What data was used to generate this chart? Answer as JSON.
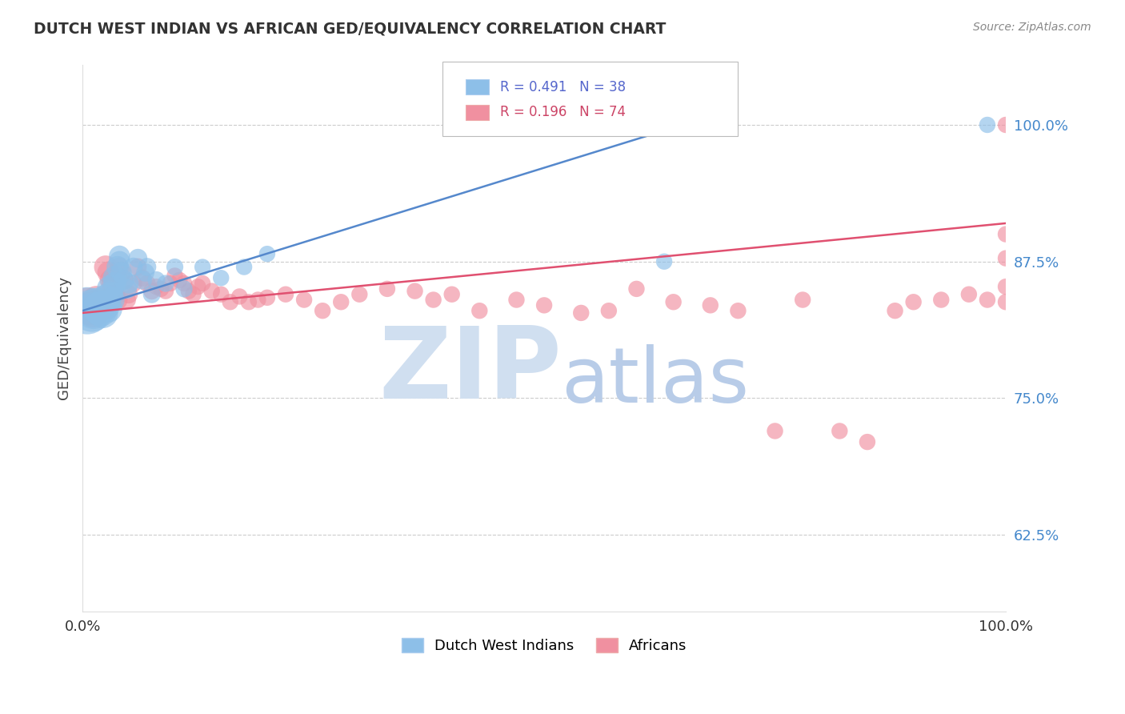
{
  "title": "DUTCH WEST INDIAN VS AFRICAN GED/EQUIVALENCY CORRELATION CHART",
  "source": "Source: ZipAtlas.com",
  "ylabel": "GED/Equivalency",
  "ytick_labels": [
    "62.5%",
    "75.0%",
    "87.5%",
    "100.0%"
  ],
  "ytick_values": [
    0.625,
    0.75,
    0.875,
    1.0
  ],
  "xlim": [
    0.0,
    1.0
  ],
  "ylim": [
    0.555,
    1.055
  ],
  "legend_blue_label": "Dutch West Indians",
  "legend_pink_label": "Africans",
  "R_blue": 0.491,
  "N_blue": 38,
  "R_pink": 0.196,
  "N_pink": 74,
  "blue_color": "#8dbfe8",
  "pink_color": "#f090a0",
  "blue_line_color": "#5588cc",
  "pink_line_color": "#e05070",
  "watermark_zip": "ZIP",
  "watermark_atlas": "atlas",
  "watermark_color_zip": "#d0dff0",
  "watermark_color_atlas": "#b8cce8",
  "background_color": "#ffffff",
  "grid_color": "#cccccc",
  "blue_points_x": [
    0.005,
    0.01,
    0.012,
    0.015,
    0.018,
    0.02,
    0.022,
    0.025,
    0.025,
    0.028,
    0.03,
    0.03,
    0.032,
    0.035,
    0.035,
    0.038,
    0.04,
    0.04,
    0.042,
    0.045,
    0.048,
    0.05,
    0.055,
    0.06,
    0.065,
    0.068,
    0.07,
    0.075,
    0.08,
    0.09,
    0.1,
    0.11,
    0.13,
    0.15,
    0.175,
    0.2,
    0.63,
    0.98
  ],
  "blue_points_y": [
    0.83,
    0.83,
    0.83,
    0.835,
    0.832,
    0.83,
    0.828,
    0.84,
    0.835,
    0.832,
    0.85,
    0.845,
    0.84,
    0.86,
    0.855,
    0.87,
    0.88,
    0.875,
    0.865,
    0.858,
    0.85,
    0.855,
    0.87,
    0.878,
    0.858,
    0.865,
    0.87,
    0.845,
    0.858,
    0.855,
    0.87,
    0.85,
    0.87,
    0.86,
    0.87,
    0.882,
    0.875,
    1.0
  ],
  "blue_sizes": [
    100,
    80,
    60,
    55,
    50,
    45,
    42,
    40,
    38,
    35,
    32,
    30,
    28,
    26,
    24,
    22,
    20,
    20,
    20,
    18,
    18,
    18,
    16,
    16,
    16,
    15,
    15,
    14,
    14,
    13,
    13,
    13,
    12,
    12,
    12,
    12,
    12,
    12
  ],
  "pink_points_x": [
    0.005,
    0.008,
    0.01,
    0.012,
    0.015,
    0.018,
    0.02,
    0.022,
    0.025,
    0.028,
    0.03,
    0.032,
    0.035,
    0.038,
    0.04,
    0.042,
    0.045,
    0.048,
    0.05,
    0.055,
    0.06,
    0.065,
    0.07,
    0.075,
    0.08,
    0.085,
    0.09,
    0.095,
    0.1,
    0.105,
    0.11,
    0.115,
    0.12,
    0.125,
    0.13,
    0.14,
    0.15,
    0.16,
    0.17,
    0.18,
    0.19,
    0.2,
    0.22,
    0.24,
    0.26,
    0.28,
    0.3,
    0.33,
    0.36,
    0.38,
    0.4,
    0.43,
    0.47,
    0.5,
    0.54,
    0.57,
    0.6,
    0.64,
    0.68,
    0.71,
    0.75,
    0.78,
    0.82,
    0.85,
    0.88,
    0.9,
    0.93,
    0.96,
    0.98,
    1.0,
    1.0,
    1.0,
    1.0,
    1.0
  ],
  "pink_points_y": [
    0.835,
    0.832,
    0.83,
    0.828,
    0.84,
    0.838,
    0.835,
    0.832,
    0.87,
    0.865,
    0.858,
    0.855,
    0.845,
    0.84,
    0.87,
    0.865,
    0.858,
    0.84,
    0.845,
    0.855,
    0.87,
    0.86,
    0.855,
    0.848,
    0.852,
    0.85,
    0.848,
    0.855,
    0.862,
    0.858,
    0.855,
    0.848,
    0.845,
    0.852,
    0.855,
    0.848,
    0.845,
    0.838,
    0.843,
    0.838,
    0.84,
    0.842,
    0.845,
    0.84,
    0.83,
    0.838,
    0.845,
    0.85,
    0.848,
    0.84,
    0.845,
    0.83,
    0.84,
    0.835,
    0.828,
    0.83,
    0.85,
    0.838,
    0.835,
    0.83,
    0.72,
    0.84,
    0.72,
    0.71,
    0.83,
    0.838,
    0.84,
    0.845,
    0.84,
    0.838,
    0.852,
    0.878,
    0.9,
    1.0
  ],
  "pink_sizes": [
    55,
    50,
    45,
    40,
    35,
    30,
    28,
    26,
    24,
    22,
    20,
    20,
    18,
    18,
    16,
    16,
    16,
    15,
    15,
    14,
    14,
    13,
    13,
    13,
    12,
    12,
    12,
    12,
    12,
    12,
    12,
    12,
    12,
    12,
    12,
    12,
    12,
    12,
    12,
    12,
    12,
    12,
    12,
    12,
    12,
    12,
    12,
    12,
    12,
    12,
    12,
    12,
    12,
    12,
    12,
    12,
    12,
    12,
    12,
    12,
    12,
    12,
    12,
    12,
    12,
    12,
    12,
    12,
    12,
    12,
    12,
    12,
    12,
    12
  ],
  "blue_line_x": [
    0.0,
    0.65
  ],
  "blue_line_y": [
    0.83,
    1.0
  ],
  "pink_line_x": [
    0.0,
    1.0
  ],
  "pink_line_y": [
    0.828,
    0.91
  ]
}
